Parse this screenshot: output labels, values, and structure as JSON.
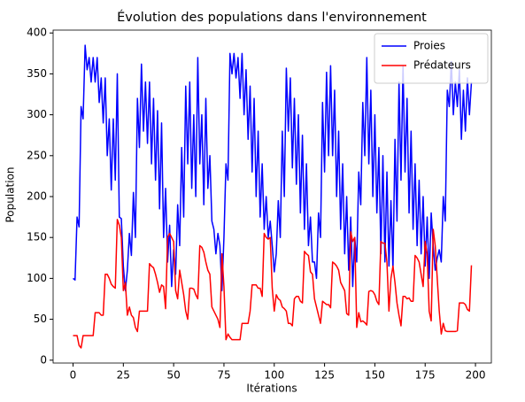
{
  "chart_data": {
    "type": "line",
    "title": "Évolution des populations dans l'environnement",
    "xlabel": "Itérations",
    "ylabel": "Population",
    "legend": "upper right",
    "xlim": [
      -9.9,
      207.9
    ],
    "ylim": [
      -3.5,
      403.5
    ],
    "xticks": [
      0,
      25,
      50,
      75,
      100,
      125,
      150,
      175,
      200
    ],
    "yticks": [
      0,
      50,
      100,
      150,
      200,
      250,
      300,
      350,
      400
    ],
    "x": [
      0,
      1,
      2,
      3,
      4,
      5,
      6,
      7,
      8,
      9,
      10,
      11,
      12,
      13,
      14,
      15,
      16,
      17,
      18,
      19,
      20,
      21,
      22,
      23,
      24,
      25,
      26,
      27,
      28,
      29,
      30,
      31,
      32,
      33,
      34,
      35,
      36,
      37,
      38,
      39,
      40,
      41,
      42,
      43,
      44,
      45,
      46,
      47,
      48,
      49,
      50,
      51,
      52,
      53,
      54,
      55,
      56,
      57,
      58,
      59,
      60,
      61,
      62,
      63,
      64,
      65,
      66,
      67,
      68,
      69,
      70,
      71,
      72,
      73,
      74,
      75,
      76,
      77,
      78,
      79,
      80,
      81,
      82,
      83,
      84,
      85,
      86,
      87,
      88,
      89,
      90,
      91,
      92,
      93,
      94,
      95,
      96,
      97,
      98,
      99,
      100,
      101,
      102,
      103,
      104,
      105,
      106,
      107,
      108,
      109,
      110,
      111,
      112,
      113,
      114,
      115,
      116,
      117,
      118,
      119,
      120,
      121,
      122,
      123,
      124,
      125,
      126,
      127,
      128,
      129,
      130,
      131,
      132,
      133,
      134,
      135,
      136,
      137,
      138,
      139,
      140,
      141,
      142,
      143,
      144,
      145,
      146,
      147,
      148,
      149,
      150,
      151,
      152,
      153,
      154,
      155,
      156,
      157,
      158,
      159,
      160,
      161,
      162,
      163,
      164,
      165,
      166,
      167,
      168,
      169,
      170,
      171,
      172,
      173,
      174,
      175,
      176,
      177,
      178,
      179,
      180,
      181,
      182,
      183,
      184,
      185,
      186,
      187,
      188,
      189,
      190,
      191,
      192,
      193,
      194,
      195,
      196,
      197,
      198
    ],
    "series": [
      {
        "name": "Proies",
        "color": "#0000ff",
        "values": [
          100,
          98,
          175,
          163,
          310,
          295,
          385,
          355,
          370,
          340,
          370,
          340,
          370,
          315,
          345,
          290,
          345,
          250,
          295,
          208,
          295,
          220,
          350,
          175,
          173,
          115,
          85,
          110,
          155,
          128,
          205,
          150,
          320,
          260,
          362,
          280,
          340,
          265,
          340,
          240,
          320,
          220,
          305,
          185,
          290,
          150,
          210,
          120,
          165,
          90,
          135,
          105,
          190,
          140,
          260,
          175,
          335,
          240,
          340,
          210,
          300,
          200,
          370,
          240,
          300,
          190,
          320,
          210,
          250,
          170,
          160,
          130,
          155,
          140,
          85,
          150,
          240,
          220,
          375,
          350,
          375,
          345,
          370,
          320,
          375,
          300,
          355,
          270,
          335,
          230,
          320,
          200,
          280,
          175,
          240,
          160,
          200,
          150,
          170,
          140,
          108,
          130,
          195,
          150,
          280,
          200,
          357,
          280,
          345,
          235,
          320,
          215,
          300,
          180,
          275,
          160,
          240,
          140,
          175,
          120,
          120,
          100,
          180,
          150,
          315,
          230,
          352,
          250,
          360,
          250,
          330,
          200,
          280,
          160,
          240,
          130,
          200,
          110,
          175,
          90,
          150,
          120,
          230,
          190,
          315,
          250,
          370,
          240,
          330,
          200,
          300,
          180,
          260,
          130,
          250,
          120,
          230,
          115,
          195,
          110,
          270,
          170,
          340,
          220,
          360,
          230,
          320,
          180,
          280,
          160,
          240,
          140,
          220,
          130,
          200,
          115,
          175,
          100,
          180,
          140,
          110,
          125,
          135,
          120,
          200,
          170,
          330,
          310,
          365,
          300,
          340,
          310,
          355,
          270,
          330,
          280,
          345,
          300,
          340
        ]
      },
      {
        "name": "Prédateurs",
        "color": "#ff0000",
        "values": [
          30,
          30,
          30,
          18,
          15,
          30,
          30,
          30,
          30,
          30,
          30,
          58,
          58,
          58,
          55,
          55,
          105,
          105,
          100,
          93,
          90,
          88,
          172,
          165,
          150,
          85,
          95,
          55,
          65,
          55,
          52,
          40,
          35,
          60,
          60,
          60,
          60,
          60,
          118,
          115,
          113,
          105,
          95,
          83,
          92,
          90,
          63,
          150,
          155,
          150,
          145,
          85,
          75,
          110,
          95,
          80,
          60,
          50,
          88,
          88,
          87,
          80,
          75,
          140,
          138,
          132,
          120,
          110,
          105,
          65,
          60,
          55,
          50,
          40,
          130,
          90,
          25,
          32,
          28,
          25,
          25,
          25,
          25,
          25,
          45,
          45,
          45,
          45,
          60,
          92,
          92,
          92,
          88,
          88,
          78,
          155,
          150,
          148,
          150,
          88,
          60,
          80,
          75,
          73,
          65,
          63,
          60,
          45,
          45,
          42,
          75,
          78,
          78,
          72,
          70,
          133,
          130,
          128,
          108,
          105,
          75,
          65,
          55,
          45,
          72,
          70,
          68,
          68,
          64,
          120,
          118,
          115,
          110,
          95,
          90,
          85,
          57,
          55,
          157,
          145,
          150,
          40,
          58,
          47,
          48,
          46,
          43,
          84,
          85,
          84,
          80,
          72,
          68,
          145,
          143,
          143,
          120,
          60,
          100,
          115,
          95,
          70,
          55,
          42,
          78,
          78,
          75,
          76,
          72,
          72,
          128,
          125,
          120,
          105,
          90,
          145,
          130,
          60,
          48,
          160,
          140,
          100,
          60,
          32,
          45,
          36,
          35,
          35,
          35,
          35,
          35,
          36,
          70,
          70,
          70,
          68,
          62,
          60,
          116
        ]
      }
    ]
  }
}
